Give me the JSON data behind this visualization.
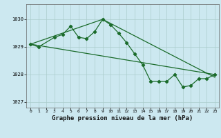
{
  "title": "Graphe pression niveau de la mer (hPa)",
  "bg_color": "#cce8f0",
  "grid_color": "#aacccc",
  "line_color": "#1a6b2a",
  "marker_color": "#1a6b2a",
  "xlim": [
    -0.5,
    23.5
  ],
  "ylim": [
    1026.8,
    1030.55
  ],
  "yticks": [
    1027,
    1028,
    1029,
    1030
  ],
  "xticks": [
    0,
    1,
    2,
    3,
    4,
    5,
    6,
    7,
    8,
    9,
    10,
    11,
    12,
    13,
    14,
    15,
    16,
    17,
    18,
    19,
    20,
    21,
    22,
    23
  ],
  "series1_x": [
    0,
    1,
    3,
    4,
    5,
    6,
    7,
    8,
    9,
    10,
    11,
    12,
    13,
    14,
    15,
    16,
    17,
    18,
    19,
    20,
    21,
    22,
    23
  ],
  "series1_y": [
    1029.1,
    1029.0,
    1029.35,
    1029.45,
    1029.75,
    1029.35,
    1029.3,
    1029.55,
    1030.0,
    1029.8,
    1029.5,
    1029.15,
    1028.75,
    1028.35,
    1027.75,
    1027.75,
    1027.75,
    1028.0,
    1027.55,
    1027.6,
    1027.85,
    1027.85,
    1028.0
  ],
  "series2_x": [
    0,
    23
  ],
  "series2_y": [
    1029.1,
    1028.0
  ],
  "series3_x": [
    0,
    9,
    23
  ],
  "series3_y": [
    1029.1,
    1030.0,
    1027.9
  ],
  "title_fontsize": 6.5
}
